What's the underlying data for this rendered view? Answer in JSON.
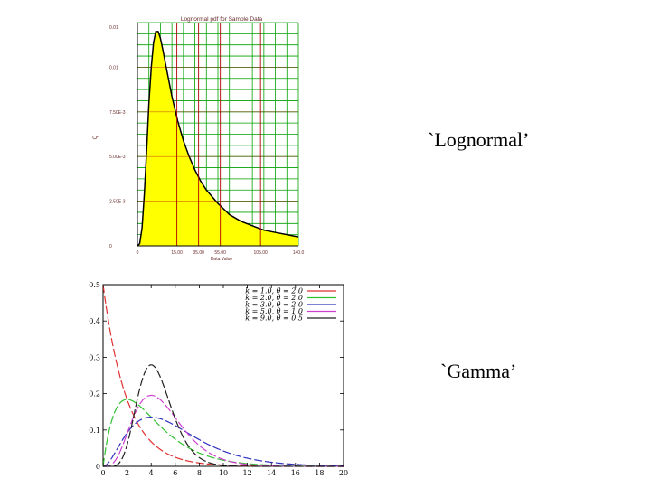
{
  "slide": {
    "label_lognormal": "`Lognormal’",
    "label_gamma": "`Gamma’"
  },
  "colors": {
    "fill": "#ffff00",
    "grid_green": "#00a000",
    "grid_red": "#b00000",
    "gamma_colors": [
      "#e03030",
      "#30c030",
      "#3030c0",
      "#d040d0",
      "#202020"
    ]
  },
  "chart_data": [
    {
      "type": "area",
      "title": "Lognormal pdf for Sample Data",
      "xlabel": "Data Value",
      "ylabel": "Q",
      "xlim": [
        0,
        140
      ],
      "ylim": [
        0,
        0.01
      ],
      "x_ticks": [
        "0",
        "15.00",
        "35.00",
        "55.00",
        "105.00",
        "140.0"
      ],
      "y_ticks": [
        "0",
        "2.50E-3",
        "5.00E-3",
        "7.50E-3",
        "0.01",
        "0.01"
      ],
      "grid": true,
      "series": [
        {
          "x": [
            0,
            2,
            4,
            6,
            8,
            10,
            12,
            14,
            16,
            18,
            20,
            22,
            25,
            30,
            35,
            40,
            45,
            50,
            55,
            60,
            70,
            80,
            90,
            100,
            110,
            120,
            130,
            140
          ],
          "y": [
            0,
            0.0001,
            0.0008,
            0.0023,
            0.0043,
            0.0064,
            0.008,
            0.0091,
            0.0096,
            0.0096,
            0.0093,
            0.0088,
            0.008,
            0.0067,
            0.0056,
            0.0047,
            0.004,
            0.0034,
            0.0029,
            0.0025,
            0.0019,
            0.0014,
            0.0011,
            0.0009,
            0.0007,
            0.0006,
            0.0005,
            0.0004
          ]
        }
      ]
    },
    {
      "type": "line",
      "xlim": [
        0,
        20
      ],
      "ylim": [
        0,
        0.5
      ],
      "x_ticks": [
        "0",
        "2",
        "4",
        "6",
        "8",
        "10",
        "12",
        "14",
        "16",
        "18",
        "20"
      ],
      "y_ticks": [
        "0",
        "0.1",
        "0.2",
        "0.3",
        "0.4",
        "0.5"
      ],
      "grid": false,
      "legend_position": "top-right",
      "series": [
        {
          "name": "k = 1.0, θ = 2.0",
          "k": 1,
          "theta": 2
        },
        {
          "name": "k = 2.0, θ = 2.0",
          "k": 2,
          "theta": 2
        },
        {
          "name": "k = 3.0, θ = 2.0",
          "k": 3,
          "theta": 2
        },
        {
          "name": "k = 5.0, θ = 1.0",
          "k": 5,
          "theta": 1
        },
        {
          "name": "k = 9.0, θ = 0.5",
          "k": 9,
          "theta": 0.5
        }
      ]
    }
  ]
}
